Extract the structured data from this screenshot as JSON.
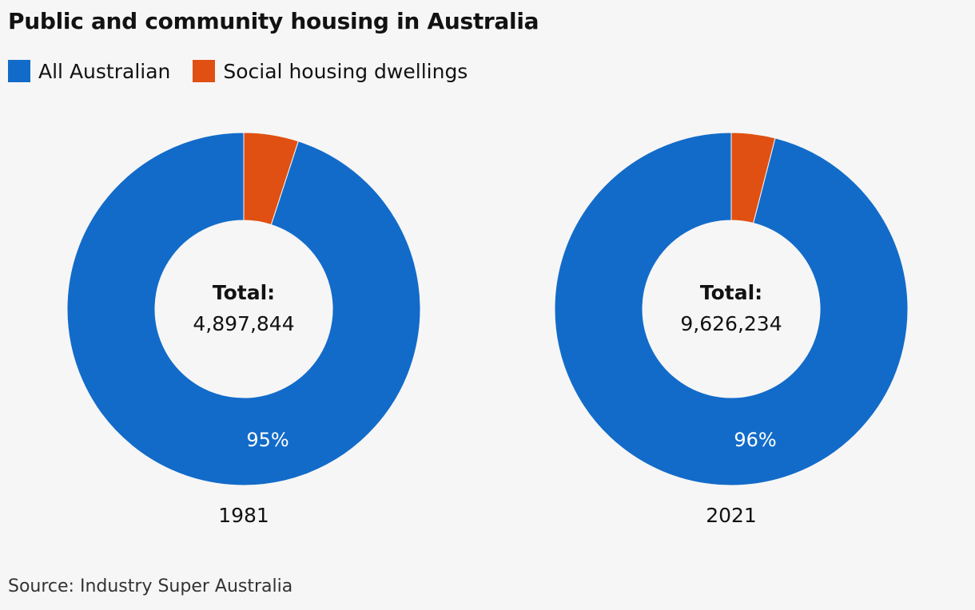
{
  "title": "Public and community housing in Australia",
  "source": "Source: Industry Super Australia",
  "colors": {
    "all_australian": "#126bc9",
    "social_housing": "#e05012",
    "background": "#f6f6f6"
  },
  "legend": [
    {
      "label": "All Australian",
      "color": "#126bc9"
    },
    {
      "label": "Social housing dwellings",
      "color": "#e05012"
    }
  ],
  "chart_data": [
    {
      "type": "pie",
      "year": "1981",
      "center_label": "Total:",
      "total": "4,897,844",
      "slices": [
        {
          "name": "All Australian",
          "value": 95,
          "label": "95%"
        },
        {
          "name": "Social housing dwellings",
          "value": 5,
          "label": ""
        }
      ]
    },
    {
      "type": "pie",
      "year": "2021",
      "center_label": "Total:",
      "total": "9,626,234",
      "slices": [
        {
          "name": "All Australian",
          "value": 96,
          "label": "96%"
        },
        {
          "name": "Social housing dwellings",
          "value": 4,
          "label": ""
        }
      ]
    }
  ]
}
